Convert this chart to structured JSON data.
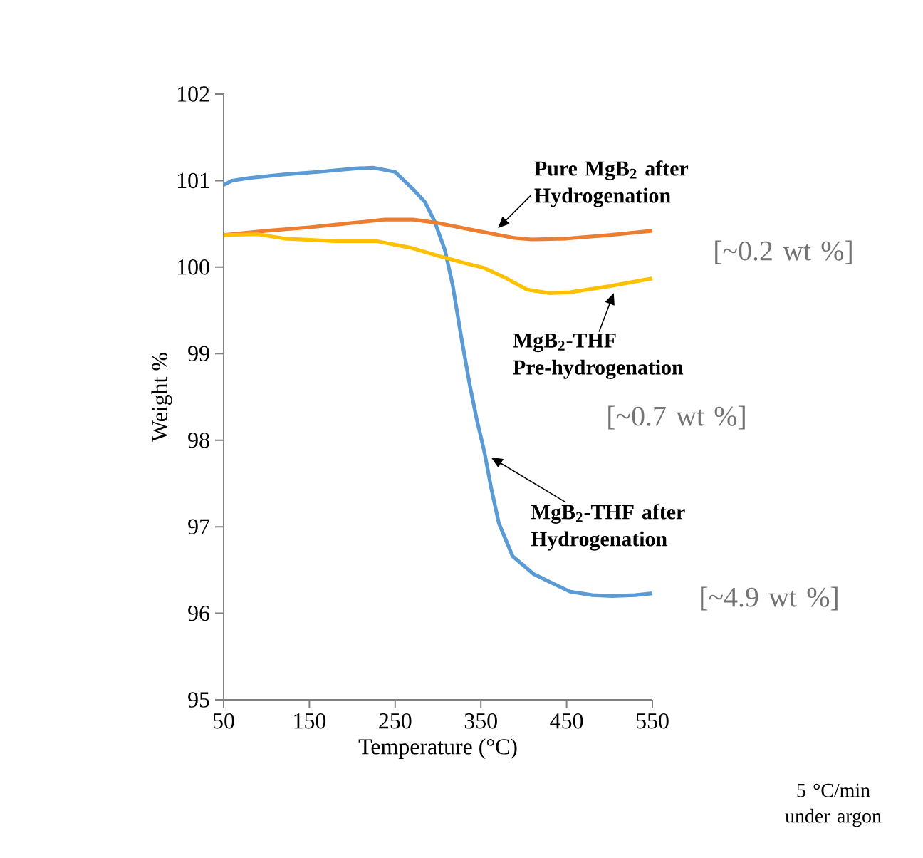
{
  "chart_data": {
    "type": "line",
    "xlabel": "Temperature (°C)",
    "ylabel": "Weight %",
    "xlim": [
      50,
      550
    ],
    "ylim": [
      95,
      102
    ],
    "xticks": [
      50,
      150,
      250,
      350,
      450,
      550
    ],
    "yticks": [
      95,
      96,
      97,
      98,
      99,
      100,
      101,
      102
    ],
    "grid": false,
    "marker": "none",
    "line_style": "solid",
    "series": [
      {
        "color": "#5b9bd5",
        "x": [
          50,
          60,
          80,
          120,
          160,
          204,
          224,
          250,
          271,
          285,
          296,
          308,
          317,
          327,
          337,
          345,
          354,
          362,
          371,
          387,
          412,
          454,
          480,
          503,
          530,
          550
        ],
        "values": [
          100.95,
          101.0,
          101.03,
          101.07,
          101.1,
          101.14,
          101.15,
          101.1,
          100.9,
          100.75,
          100.53,
          100.2,
          99.8,
          99.2,
          98.64,
          98.25,
          97.87,
          97.45,
          97.04,
          96.66,
          96.45,
          96.25,
          96.21,
          96.2,
          96.21,
          96.23
        ]
      },
      {
        "color": "#ed7d31",
        "x": [
          50,
          100,
          150,
          200,
          238,
          271,
          300,
          340,
          387,
          409,
          450,
          500,
          550
        ],
        "values": [
          100.37,
          100.42,
          100.46,
          100.51,
          100.55,
          100.55,
          100.51,
          100.43,
          100.34,
          100.32,
          100.33,
          100.37,
          100.42
        ]
      },
      {
        "color": "#ffc000",
        "x": [
          50,
          90,
          121,
          180,
          229,
          270,
          304,
          330,
          354,
          380,
          404,
          430,
          454,
          500,
          550
        ],
        "values": [
          100.37,
          100.38,
          100.33,
          100.3,
          100.3,
          100.22,
          100.12,
          100.05,
          99.99,
          99.87,
          99.74,
          99.7,
          99.71,
          99.78,
          99.87
        ]
      }
    ],
    "annotations": [
      {
        "text": "Pure MgB$_{2}$ after Hydrogenation",
        "x": 370,
        "y": 100.45
      },
      "[~0.2 wt %]",
      {
        "text": "MgB$_{2}$-THF Pre-hydrogenation",
        "x": 505,
        "y": 99.7
      },
      "[~0.7 wt %]",
      {
        "text": "MgB$_{2}$-THF after Hydrogenation",
        "x": 362,
        "y": 97.8
      },
      "[~4.9 wt %]",
      "5 °C/min under argon"
    ]
  }
}
